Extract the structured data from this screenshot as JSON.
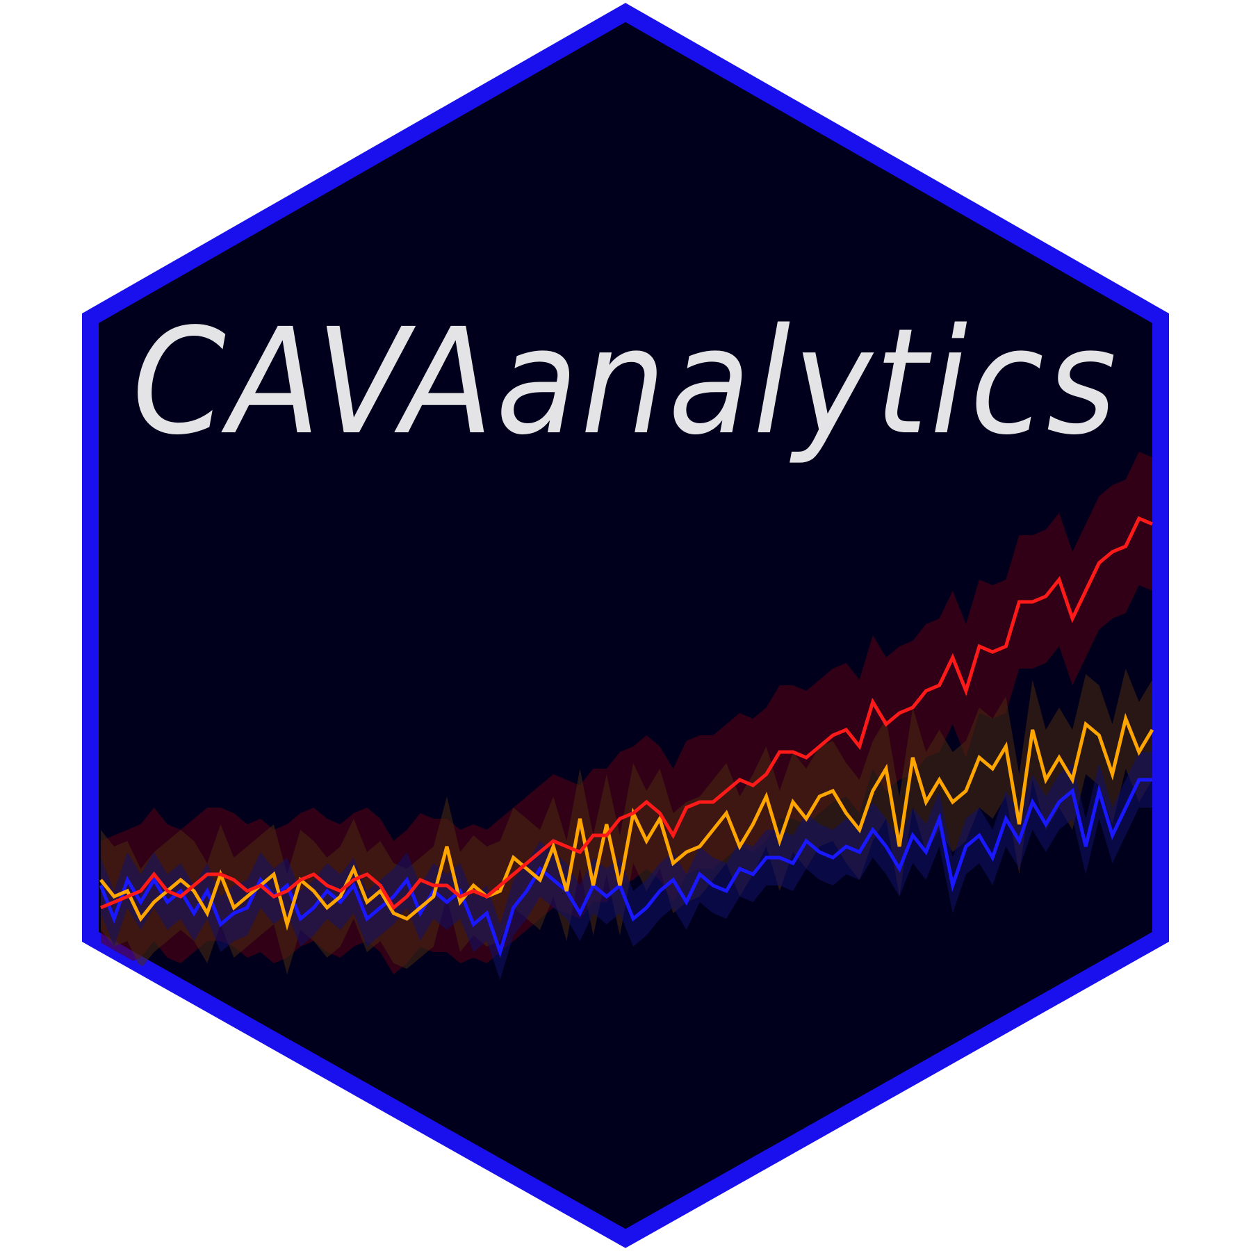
{
  "logo": {
    "title": "CAVAanalytics",
    "colors": {
      "background": "#ffffff",
      "hex_fill": "#01001c",
      "hex_border": "#1a10ee",
      "title": "#e4e4e6"
    }
  },
  "chart_data": {
    "type": "line",
    "title": "",
    "xlabel": "",
    "ylabel": "",
    "grid": false,
    "legend": "none",
    "ylim": [
      0,
      80
    ],
    "x": [
      0,
      1,
      2,
      3,
      4,
      5,
      6,
      7,
      8,
      9,
      10,
      11,
      12,
      13,
      14,
      15,
      16,
      17,
      18,
      19,
      20,
      21,
      22,
      23,
      24,
      25,
      26,
      27,
      28,
      29,
      30,
      31,
      32,
      33,
      34,
      35,
      36,
      37,
      38,
      39,
      40,
      41,
      42,
      43,
      44,
      45,
      46,
      47,
      48,
      49,
      50,
      51,
      52,
      53,
      54,
      55,
      56,
      57,
      58,
      59,
      60,
      61,
      62,
      63,
      64,
      65,
      66,
      67,
      68,
      69,
      70,
      71,
      72,
      73,
      74,
      75,
      76,
      77,
      78,
      79
    ],
    "series": [
      {
        "color": "#ff1a1a",
        "band_color": "#5a0012",
        "band_width": 12,
        "values": [
          3,
          4,
          5,
          6,
          9,
          6,
          5,
          7,
          9,
          9,
          8,
          6,
          7,
          5,
          6,
          8,
          9,
          7,
          6,
          8,
          9,
          7,
          3,
          5,
          8,
          7,
          7,
          5,
          6,
          5,
          7,
          9,
          11,
          13,
          15,
          14,
          13,
          16,
          16,
          19,
          20,
          22,
          20,
          16,
          21,
          22,
          22,
          24,
          26,
          25,
          27,
          31,
          31,
          30,
          32,
          34,
          35,
          32,
          40,
          36,
          38,
          39,
          42,
          43,
          48,
          42,
          50,
          49,
          50,
          58,
          58,
          59,
          62,
          55,
          60,
          65,
          67,
          68,
          73,
          72
        ]
      },
      {
        "color": "#ffa500",
        "band_color": "#4a2a10",
        "band_width": 9,
        "values": [
          8,
          5,
          6,
          1,
          4,
          6,
          8,
          6,
          2,
          9,
          3,
          5,
          7,
          9,
          0,
          8,
          6,
          3,
          5,
          10,
          4,
          6,
          2,
          1,
          3,
          5,
          14,
          4,
          7,
          5,
          6,
          12,
          10,
          8,
          14,
          6,
          19,
          7,
          18,
          7,
          20,
          15,
          19,
          11,
          13,
          14,
          17,
          20,
          14,
          18,
          23,
          15,
          22,
          19,
          23,
          24,
          20,
          17,
          24,
          28,
          14,
          30,
          22,
          26,
          22,
          24,
          30,
          28,
          32,
          18,
          35,
          26,
          30,
          26,
          36,
          34,
          27,
          37,
          31,
          35
        ]
      },
      {
        "color": "#1a18ff",
        "band_color": "#10106a",
        "band_width": 5,
        "values": [
          7,
          1,
          8,
          4,
          8,
          4,
          6,
          2,
          6,
          0,
          2,
          3,
          8,
          5,
          7,
          1,
          3,
          6,
          4,
          7,
          1,
          3,
          5,
          8,
          2,
          6,
          4,
          6,
          0,
          2,
          -5,
          3,
          6,
          10,
          8,
          6,
          2,
          7,
          5,
          7,
          1,
          3,
          6,
          8,
          4,
          9,
          7,
          6,
          10,
          9,
          12,
          12,
          11,
          15,
          13,
          12,
          14,
          13,
          17,
          14,
          10,
          16,
          13,
          19,
          7,
          14,
          16,
          12,
          19,
          15,
          22,
          18,
          22,
          24,
          14,
          24,
          16,
          21,
          26,
          26
        ]
      }
    ]
  }
}
